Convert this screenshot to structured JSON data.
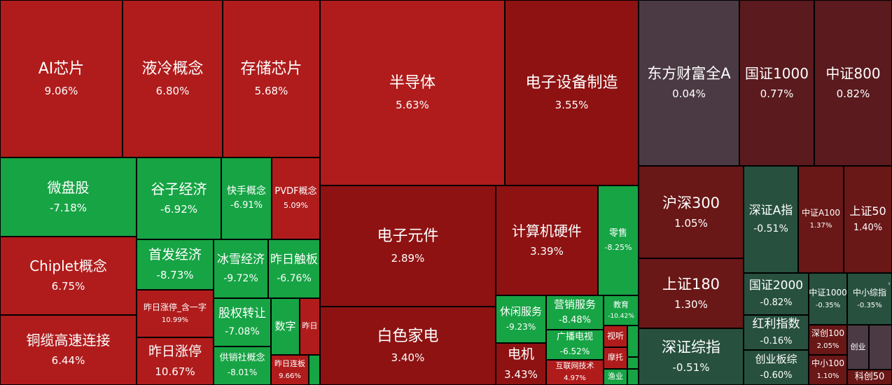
{
  "colors": {
    "up": "#b01c1c",
    "up_dark": "#8e1212",
    "up_maroon": "#6a1717",
    "up_deep": "#5a1a1e",
    "flat": "#4b3a43",
    "down": "#17a445",
    "down_dark": "#27503f"
  },
  "chart_data": {
    "type": "treemap",
    "title": "",
    "items": [
      {
        "name": "AI芯片",
        "value": "9.06%",
        "color": "up"
      },
      {
        "name": "液冷概念",
        "value": "6.80%",
        "color": "up"
      },
      {
        "name": "存储芯片",
        "value": "5.68%",
        "color": "up"
      },
      {
        "name": "微盘股",
        "value": "-7.18%",
        "color": "down"
      },
      {
        "name": "谷子经济",
        "value": "-6.92%",
        "color": "down"
      },
      {
        "name": "快手概念",
        "value": "-6.91%",
        "color": "down"
      },
      {
        "name": "PVDF概念",
        "value": "5.09%",
        "color": "up"
      },
      {
        "name": "Chiplet概念",
        "value": "6.75%",
        "color": "up"
      },
      {
        "name": "首发经济",
        "value": "-8.73%",
        "color": "down"
      },
      {
        "name": "冰雪经济",
        "value": "-9.72%",
        "color": "down"
      },
      {
        "name": "昨日触板",
        "value": "-6.76%",
        "color": "down"
      },
      {
        "name": "昨日涨停_含一字",
        "value": "10.99%",
        "color": "up"
      },
      {
        "name": "股权转让",
        "value": "-7.08%",
        "color": "down"
      },
      {
        "name": "数字",
        "value": "",
        "color": "down"
      },
      {
        "name": "昨日",
        "value": "",
        "color": "up"
      },
      {
        "name": "铜缆高速连接",
        "value": "6.44%",
        "color": "up"
      },
      {
        "name": "昨日涨停",
        "value": "10.67%",
        "color": "up"
      },
      {
        "name": "供销社概念",
        "value": "-8.01%",
        "color": "down"
      },
      {
        "name": "昨日连板",
        "value": "9.66%",
        "color": "up"
      },
      {
        "name": "",
        "value": "",
        "color": "down"
      },
      {
        "name": "半导体",
        "value": "5.63%",
        "color": "up"
      },
      {
        "name": "电子设备制造",
        "value": "3.55%",
        "color": "up_dark"
      },
      {
        "name": "电子元件",
        "value": "2.89%",
        "color": "up_dark"
      },
      {
        "name": "计算机硬件",
        "value": "3.39%",
        "color": "up_dark"
      },
      {
        "name": "零售",
        "value": "-8.25%",
        "color": "down"
      },
      {
        "name": "休闲服务",
        "value": "-9.23%",
        "color": "down"
      },
      {
        "name": "营销服务",
        "value": "-8.48%",
        "color": "down"
      },
      {
        "name": "教育",
        "value": "-10.42%",
        "color": "down"
      },
      {
        "name": "白色家电",
        "value": "3.40%",
        "color": "up_dark"
      },
      {
        "name": "电机",
        "value": "3.43%",
        "color": "up_dark"
      },
      {
        "name": "广播电视",
        "value": "-6.52%",
        "color": "down"
      },
      {
        "name": "视听",
        "value": "",
        "color": "up"
      },
      {
        "name": "",
        "value": "",
        "color": "down"
      },
      {
        "name": "互联网技术",
        "value": "4.97%",
        "color": "up"
      },
      {
        "name": "摩托",
        "value": "",
        "color": "up"
      },
      {
        "name": "",
        "value": "",
        "color": "down"
      },
      {
        "name": "渔业",
        "value": "",
        "color": "down"
      },
      {
        "name": "",
        "value": "",
        "color": "down"
      },
      {
        "name": "东方财富全A",
        "value": "0.04%",
        "color": "flat"
      },
      {
        "name": "国证1000",
        "value": "0.77%",
        "color": "up_deep"
      },
      {
        "name": "中证800",
        "value": "0.82%",
        "color": "up_deep"
      },
      {
        "name": "沪深300",
        "value": "1.05%",
        "color": "up_maroon"
      },
      {
        "name": "深证A指",
        "value": "-0.51%",
        "color": "down_dark"
      },
      {
        "name": "中证A100",
        "value": "1.37%",
        "color": "up_maroon"
      },
      {
        "name": "上证50",
        "value": "1.40%",
        "color": "up_maroon"
      },
      {
        "name": "上证180",
        "value": "1.30%",
        "color": "up_maroon"
      },
      {
        "name": "国证2000",
        "value": "-0.82%",
        "color": "down_dark"
      },
      {
        "name": "中证1000",
        "value": "-0.35%",
        "color": "down_dark"
      },
      {
        "name": "中小综指",
        "value": "-0.35%",
        "color": "down_dark"
      },
      {
        "name": "红利指数",
        "value": "-0.16%",
        "color": "down_dark"
      },
      {
        "name": "深创100",
        "value": "2.05%",
        "color": "up_maroon"
      },
      {
        "name": "创业",
        "value": "",
        "color": "flat"
      },
      {
        "name": "",
        "value": "",
        "color": "flat"
      },
      {
        "name": "深证综指",
        "value": "-0.51%",
        "color": "down_dark"
      },
      {
        "name": "创业板综",
        "value": "-0.60%",
        "color": "down_dark"
      },
      {
        "name": "中小100",
        "value": "1.10%",
        "color": "up_maroon"
      },
      {
        "name": "科创50",
        "value": "",
        "color": "up_maroon"
      }
    ]
  }
}
